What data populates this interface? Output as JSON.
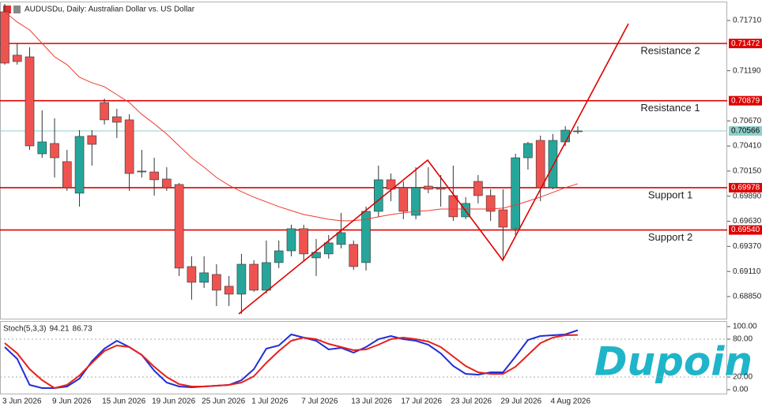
{
  "chart_data": [
    {
      "type": "candlestick",
      "title": "AUDUSDu, Daily: Australian Dollar vs. US Dollar",
      "categories": [
        "3 Jun 2026",
        null,
        null,
        null,
        "9 Jun 2026",
        null,
        null,
        null,
        "15 Jun 2026",
        null,
        null,
        null,
        "19 Jun 2026",
        null,
        null,
        null,
        "25 Jun 2026",
        null,
        null,
        null,
        "1 Jul 2026",
        null,
        null,
        null,
        "7 Jul 2026",
        null,
        null,
        null,
        "13 Jul 2026",
        null,
        null,
        null,
        "17 Jul 2026",
        null,
        null,
        null,
        "23 Jul 2026",
        null,
        null,
        null,
        "29 Jul 2026",
        null,
        null,
        null,
        "4 Aug 2026",
        null,
        null
      ],
      "open": [
        0.718,
        0.71351,
        0.71334,
        0.70329,
        0.70436,
        0.70248,
        0.69921,
        0.70517,
        0.7086,
        0.70713,
        0.70681,
        0.70141,
        0.70141,
        0.70068,
        0.70011,
        0.69161,
        0.68998,
        0.69079,
        0.68957,
        0.68875,
        0.69185,
        0.68916,
        0.69202,
        0.69324,
        0.69553,
        0.69251,
        0.69292,
        0.6939,
        0.6939,
        0.69202,
        0.69733,
        0.7006,
        0.69978,
        0.69692,
        0.69994,
        0.69978,
        0.69896,
        0.69676,
        0.70043,
        0.69896,
        0.69749,
        0.69553,
        0.70288,
        0.70468,
        0.69978,
        0.70452,
        0.70558
      ],
      "high": [
        0.71882,
        0.71473,
        0.71432,
        0.70779,
        0.70697,
        0.7037,
        0.70574,
        0.70574,
        0.70901,
        0.70795,
        0.70738,
        0.7037,
        0.70288,
        0.7019,
        0.70027,
        0.69267,
        0.69267,
        0.69185,
        0.69063,
        0.69292,
        0.69226,
        0.69431,
        0.69431,
        0.69594,
        0.69594,
        0.69447,
        0.69488,
        0.69717,
        0.69431,
        0.69782,
        0.70207,
        0.70125,
        0.70043,
        0.7019,
        0.7019,
        0.70109,
        0.70207,
        0.6988,
        0.70109,
        0.69962,
        0.69962,
        0.70329,
        0.70452,
        0.70517,
        0.70534,
        0.70615,
        0.70615
      ],
      "low": [
        0.71253,
        0.71253,
        0.7037,
        0.70288,
        0.70084,
        0.69945,
        0.69782,
        0.70207,
        0.70632,
        0.70493,
        0.69945,
        0.70084,
        0.69896,
        0.69945,
        0.69063,
        0.68818,
        0.6894,
        0.68752,
        0.68752,
        0.68671,
        0.689,
        0.68883,
        0.69145,
        0.69267,
        0.69226,
        0.69063,
        0.69243,
        0.69349,
        0.69128,
        0.6912,
        0.69676,
        0.69839,
        0.69651,
        0.69651,
        0.69921,
        0.69782,
        0.69635,
        0.69651,
        0.69815,
        0.69635,
        0.69226,
        0.69488,
        0.70166,
        0.69839,
        0.69962,
        0.70411,
        0.70534
      ],
      "close": [
        0.71269,
        0.71285,
        0.70411,
        0.70452,
        0.70288,
        0.69978,
        0.70509,
        0.70427,
        0.70681,
        0.70656,
        0.70125,
        0.7015,
        0.7006,
        0.69978,
        0.69145,
        0.68998,
        0.69096,
        0.68916,
        0.68875,
        0.69185,
        0.68916,
        0.69202,
        0.69324,
        0.69553,
        0.69292,
        0.69308,
        0.69406,
        0.69512,
        0.69161,
        0.69733,
        0.7006,
        0.69962,
        0.69733,
        0.69978,
        0.69962,
        0.69962,
        0.69676,
        0.69815,
        0.69896,
        0.69733,
        0.69569,
        0.70288,
        0.70436,
        0.69978,
        0.70468,
        0.70574,
        0.70566
      ],
      "up_color": "#26a69a",
      "down_color": "#ef5350",
      "series": [
        {
          "color": "#f03a30",
          "values": [
            0.718,
            0.71694,
            0.71612,
            0.71473,
            0.71334,
            0.71253,
            0.71122,
            0.71065,
            0.71024,
            0.70942,
            0.7086,
            0.70738,
            0.7064,
            0.70534,
            0.70411,
            0.70288,
            0.7019,
            0.70084,
            0.70003,
            0.69937,
            0.6988,
            0.69831,
            0.69782,
            0.69741,
            0.697,
            0.69676,
            0.69651,
            0.69635,
            0.69635,
            0.69651,
            0.69676,
            0.697,
            0.69717,
            0.69733,
            0.69741,
            0.69757,
            0.69757,
            0.69757,
            0.69757,
            0.69757,
            0.69766,
            0.69798,
            0.69839,
            0.6988,
            0.69929,
            0.69978,
            0.70019
          ]
        }
      ],
      "levels": [
        {
          "name": "Resistance 2",
          "value": 0.71472,
          "color": "#e00000"
        },
        {
          "name": "Resistance 1",
          "value": 0.70879,
          "color": "#e00000"
        },
        {
          "value": 0.70566,
          "color": "#8fcfca"
        },
        {
          "name": "Support 1",
          "value": 0.69978,
          "color": "#e00000"
        },
        {
          "name": "Support 2",
          "value": 0.6954,
          "label": "0.69540",
          "color": "#e00000"
        }
      ],
      "ylim": [
        0.68613,
        0.71898
      ],
      "yticks": [
        {
          "value": 0.7171,
          "label": "0.71710"
        },
        {
          "value": 0.7119,
          "label": "0.71190"
        },
        {
          "value": 0.7067,
          "label": "0.70670"
        },
        {
          "value": 0.7041,
          "label": "0.70410"
        },
        {
          "value": 0.7015,
          "label": "0.70150"
        },
        {
          "value": 0.6989,
          "label": "0.69890"
        },
        {
          "value": 0.6963,
          "label": "0.69630"
        },
        {
          "value": 0.6937,
          "label": "0.69370"
        },
        {
          "value": 0.6911,
          "label": "0.69110"
        },
        {
          "value": 0.6885,
          "label": "0.68850"
        }
      ]
    },
    {
      "type": "line",
      "title": "Stoch(5,3,3)",
      "series": [
        {
          "color": "#1f2fd6",
          "values": [
            67.5,
            48.75,
            7.5,
            2.5,
            2.5,
            5,
            17.5,
            45,
            65,
            77.5,
            67.5,
            55,
            30,
            11.25,
            5,
            3.75,
            5,
            6.25,
            7.5,
            15,
            32.5,
            65,
            70,
            87.5,
            82.5,
            77.5,
            63.75,
            66.25,
            58.75,
            67.5,
            80,
            85,
            80,
            77.5,
            71.25,
            57.5,
            37.5,
            25,
            23.75,
            27.5,
            27.5,
            52.5,
            78.75,
            85,
            86.25,
            87.5,
            94.21
          ]
        },
        {
          "color": "#e8201c",
          "values": [
            73.75,
            57.5,
            32.5,
            15,
            2.5,
            7.5,
            22.5,
            42.5,
            61.25,
            70,
            67.5,
            55,
            36.25,
            20,
            8.75,
            5,
            5,
            6.25,
            7.5,
            11.25,
            21.25,
            42.5,
            61.25,
            77.5,
            82.5,
            80,
            72.5,
            67.5,
            62.5,
            63.75,
            71.25,
            80,
            82.5,
            80,
            76.25,
            67.5,
            52.5,
            37.5,
            27.5,
            25,
            25,
            36.25,
            55,
            73.75,
            82.5,
            86.25,
            86.73
          ]
        }
      ],
      "ylim": [
        -7.5,
        107.5
      ],
      "yticks": [
        {
          "value": 100,
          "label": "100.00"
        },
        {
          "value": 80,
          "label": "80.00"
        },
        {
          "value": 20,
          "label": "20.00"
        },
        {
          "value": 0,
          "label": "0.00"
        }
      ]
    }
  ],
  "watermark": "Dupoin"
}
